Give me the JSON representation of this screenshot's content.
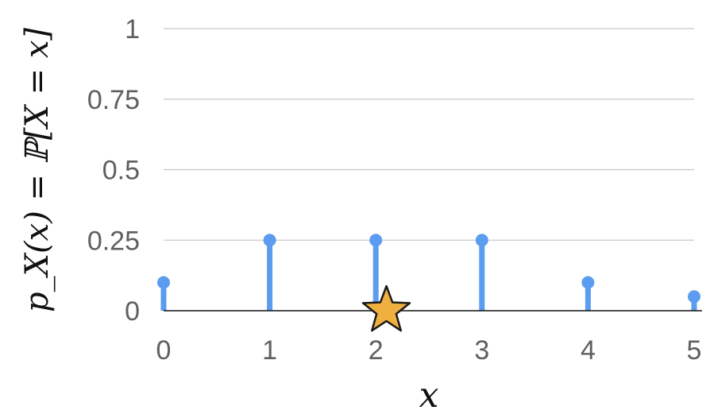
{
  "chart_data": {
    "type": "stem",
    "x": [
      0,
      1,
      2,
      3,
      4,
      5
    ],
    "values": [
      0.1,
      0.25,
      0.25,
      0.25,
      0.1,
      0.05
    ],
    "x_tick_labels": [
      "0",
      "1",
      "2",
      "3",
      "4",
      "5"
    ],
    "y_ticks": [
      0,
      0.25,
      0.5,
      0.75,
      1
    ],
    "y_tick_labels": [
      "0",
      "0.25",
      "0.5",
      "0.75",
      "1"
    ],
    "xlabel": "x",
    "ylabel": "p_X(x) = ℙ[X = x]",
    "ylim": [
      0,
      1
    ],
    "xlim": [
      0,
      5
    ],
    "grid": "horizontal",
    "stem_color": "#5b9cf0",
    "marker": {
      "shape": "star",
      "x": 2.1,
      "y": 0,
      "color": "#f0b040",
      "stroke": "#1a1a1a"
    }
  }
}
